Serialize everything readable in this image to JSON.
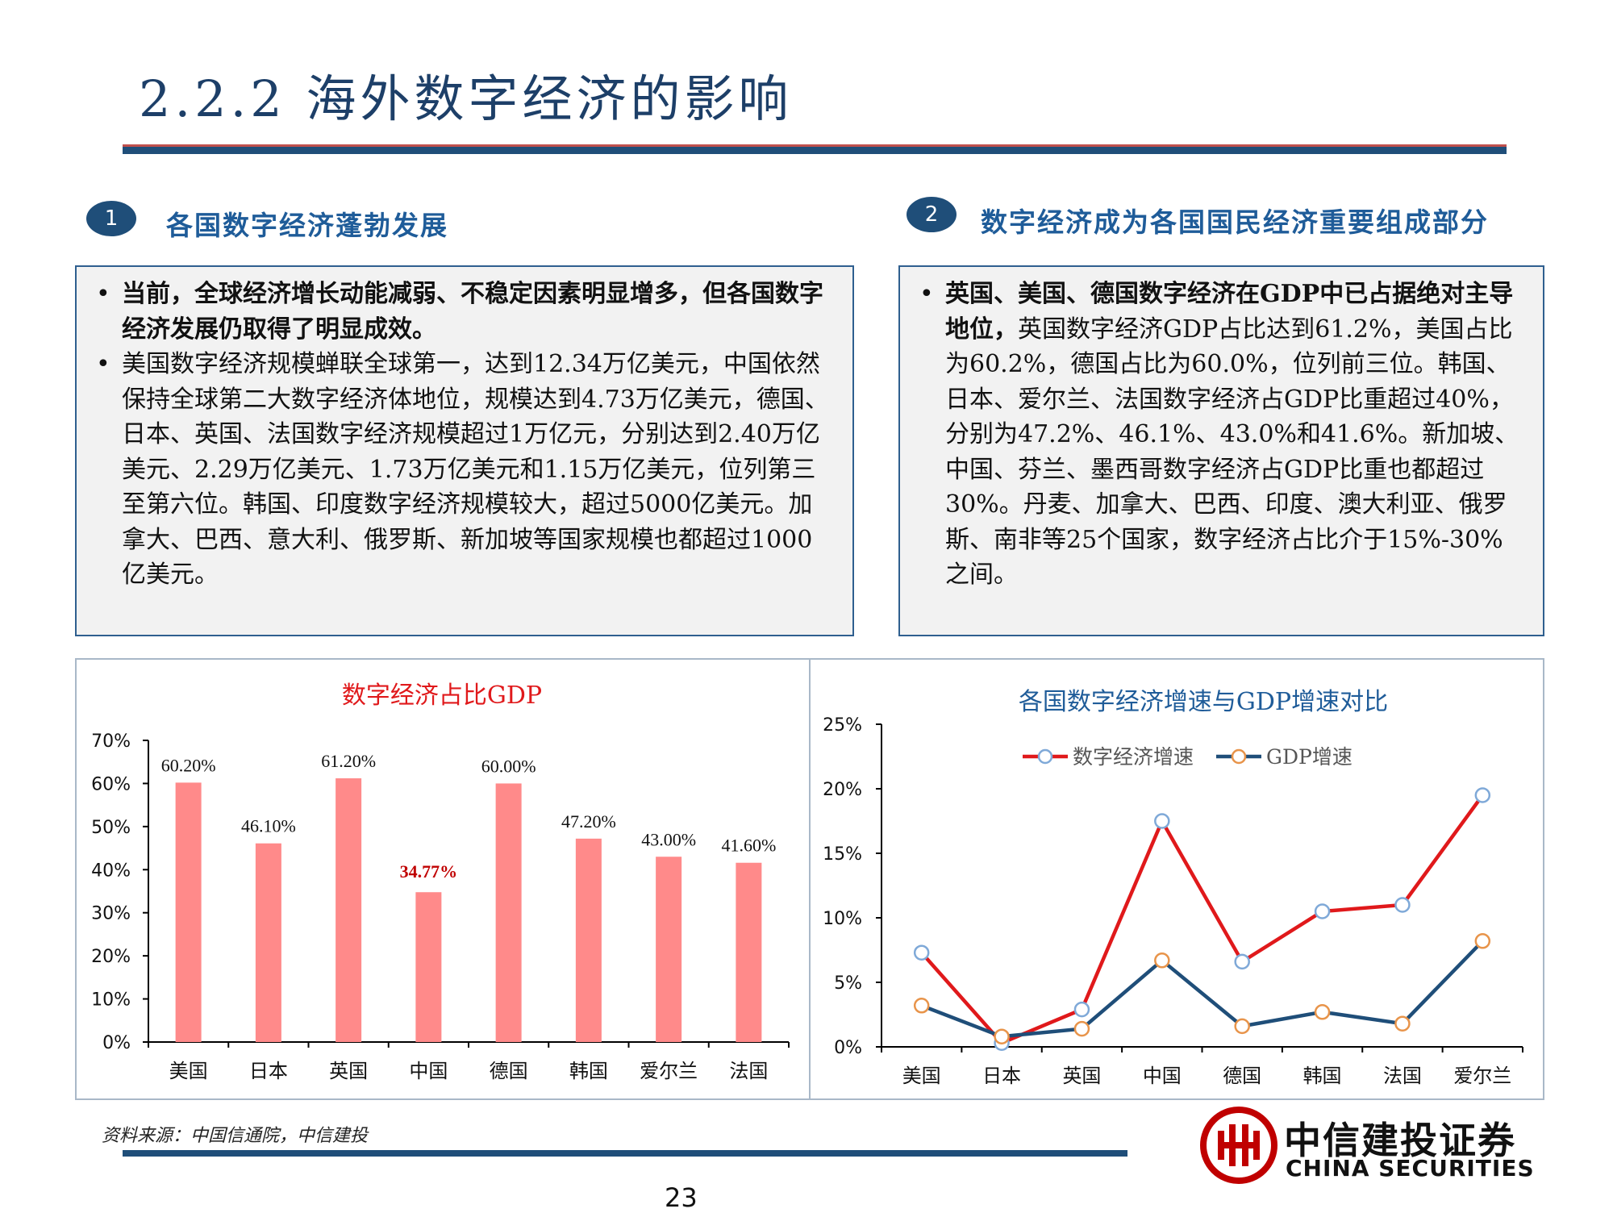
{
  "page": {
    "title": "2.2.2 海外数字经济的影响",
    "page_number": "23",
    "source": "资料来源：中国信通院，中信建投"
  },
  "sections": [
    {
      "number": "1",
      "heading": "各国数字经济蓬勃发展",
      "bullets": [
        {
          "bold": "当前，全球经济增长动能减弱、不稳定因素明显增多，但各国数字经济发展仍取得了明显成效。",
          "text": ""
        },
        {
          "bold": "",
          "text": "美国数字经济规模蝉联全球第一，达到12.34万亿美元，中国依然保持全球第二大数字经济体地位，规模达到4.73万亿美元，德国、日本、英国、法国数字经济规模超过1万亿元，分别达到2.40万亿美元、2.29万亿美元、1.73万亿美元和1.15万亿美元，位列第三至第六位。韩国、印度数字经济规模较大，超过5000亿美元。加拿大、巴西、意大利、俄罗斯、新加坡等国家规模也都超过1000亿美元。"
        }
      ]
    },
    {
      "number": "2",
      "heading": "数字经济成为各国国民经济重要组成部分",
      "bullets": [
        {
          "bold": "英国、美国、德国数字经济在GDP中已占据绝对主导地位，",
          "text": "英国数字经济GDP占比达到61.2%，美国占比为60.2%，德国占比为60.0%，位列前三位。韩国、日本、爱尔兰、法国数字经济占GDP比重超过40%，分别为47.2%、46.1%、43.0%和41.6%。新加坡、中国、芬兰、墨西哥数字经济占GDP比重也都超过30%。丹麦、加拿大、巴西、印度、澳大利亚、俄罗斯、南非等25个国家，数字经济占比介于15%-30%之间。"
        }
      ]
    }
  ],
  "colors": {
    "navy": "#1f4e79",
    "bar": "#ff8a8a",
    "digital_line": "#e0191b",
    "gdp_line": "#1f4e79",
    "highlight_label": "#c00000"
  },
  "logo": {
    "name_cn": "中信建投证券",
    "name_en": "CHINA SECURITIES"
  },
  "chart_data": [
    {
      "type": "bar",
      "title": "数字经济占比GDP",
      "categories": [
        "美国",
        "日本",
        "英国",
        "中国",
        "德国",
        "韩国",
        "爱尔兰",
        "法国"
      ],
      "values": [
        60.2,
        46.1,
        61.2,
        34.77,
        60.0,
        47.2,
        43.0,
        41.6
      ],
      "data_labels": [
        "60.20%",
        "46.10%",
        "61.20%",
        "34.77%",
        "60.00%",
        "47.20%",
        "43.00%",
        "41.60%"
      ],
      "highlight_index": 3,
      "ylim": [
        0,
        70
      ],
      "yticks": [
        "0%",
        "10%",
        "20%",
        "30%",
        "40%",
        "50%",
        "60%",
        "70%"
      ],
      "grid": false
    },
    {
      "type": "line",
      "title": "各国数字经济增速与GDP增速对比",
      "categories": [
        "美国",
        "日本",
        "英国",
        "中国",
        "德国",
        "韩国",
        "法国",
        "爱尔兰"
      ],
      "series": [
        {
          "name": "数字经济增速",
          "values": [
            7.3,
            0.3,
            2.9,
            17.5,
            6.6,
            10.5,
            11.0,
            19.5
          ]
        },
        {
          "name": "GDP增速",
          "values": [
            3.2,
            0.8,
            1.4,
            6.7,
            1.6,
            2.7,
            1.8,
            8.2
          ]
        }
      ],
      "ylim": [
        0,
        25
      ],
      "yticks": [
        "0%",
        "5%",
        "10%",
        "15%",
        "20%",
        "25%"
      ],
      "legend": "top",
      "grid": false
    }
  ]
}
